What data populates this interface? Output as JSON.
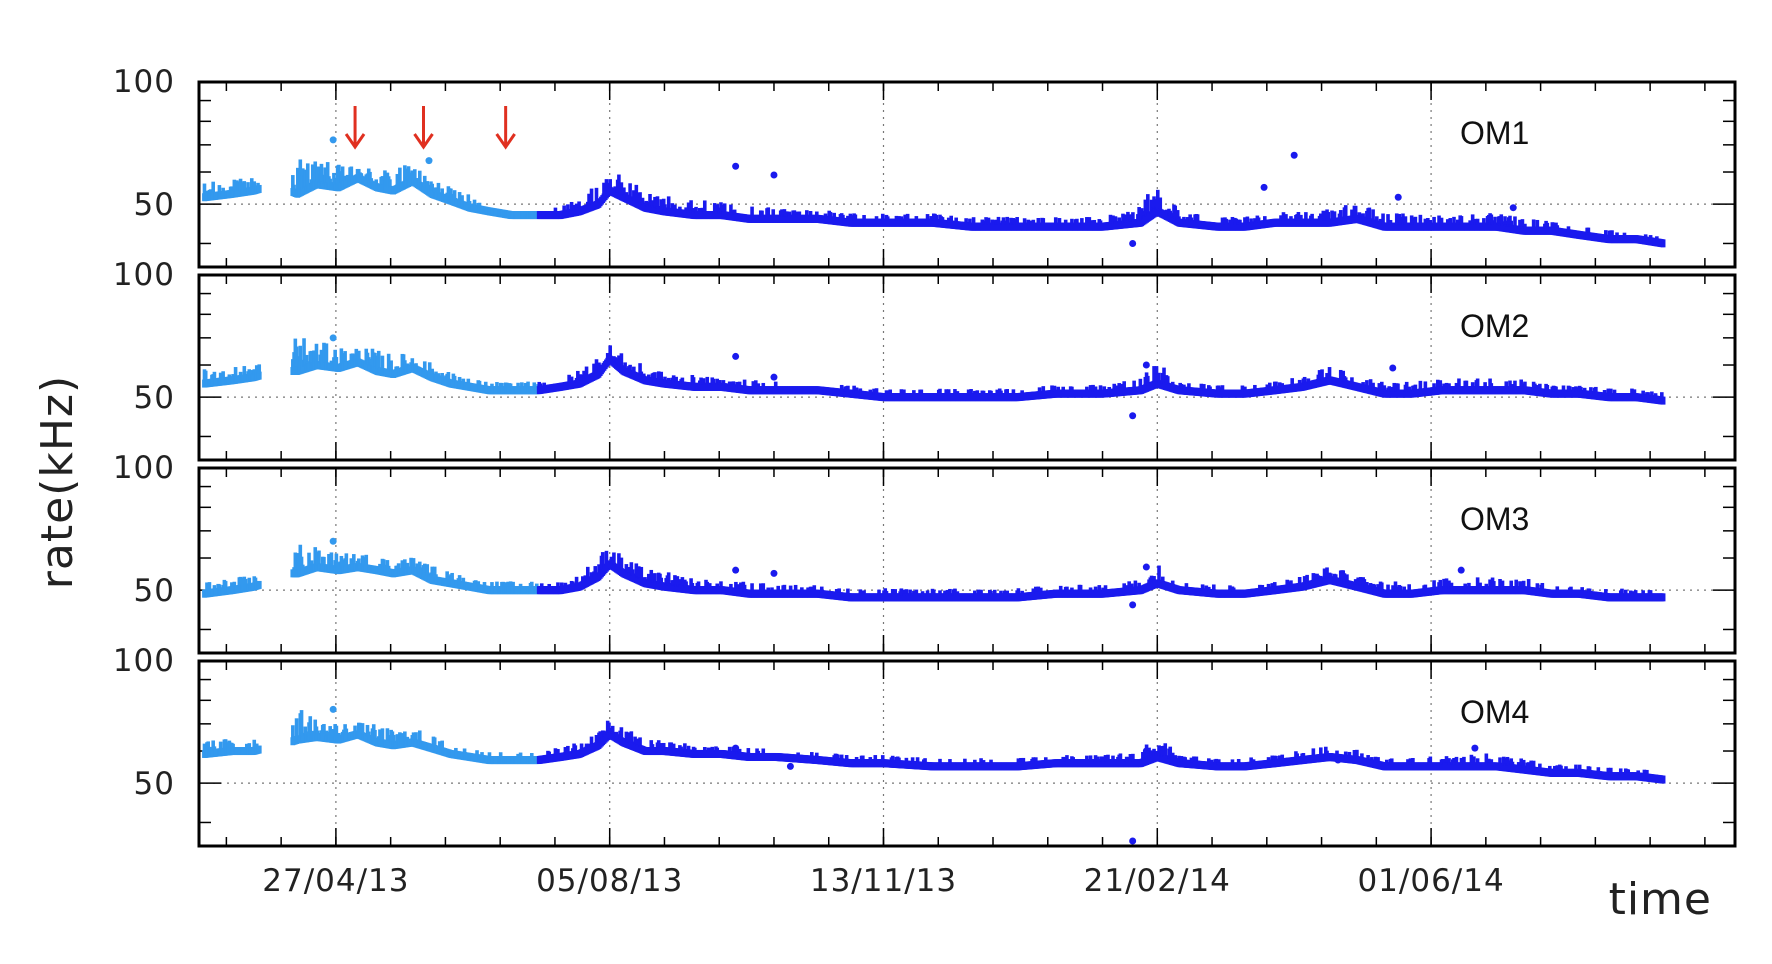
{
  "chart_data": {
    "type": "scatter",
    "ylabel": "rate(kHz)",
    "xlabel": "time",
    "x_tick_labels": [
      "27/04/13",
      "05/08/13",
      "13/11/13",
      "21/02/14",
      "01/06/14"
    ],
    "x_tick_dates": [
      "2013-04-27",
      "2013-08-05",
      "2013-11-13",
      "2014-02-21",
      "2014-06-01"
    ],
    "x_range": [
      "2013-03-08",
      "2014-09-20"
    ],
    "y_tick_labels": [
      "50",
      "100"
    ],
    "y_scale": "log",
    "ylim": [
      35,
      100
    ],
    "grid": "dotted, at x ticks and y = 50",
    "colors": {
      "early_period": "#3399ee",
      "late_period": "#1a1aee",
      "arrows": "#e03020"
    },
    "period_boundary": "2013-07-10",
    "arrows_at": [
      "2013-05-04",
      "2013-05-29",
      "2013-06-28"
    ],
    "panels": [
      {
        "name": "OM1",
        "x": [
          "2013-03-10",
          "2013-03-20",
          "2013-03-28",
          "2013-04-01",
          "2013-04-05",
          "2013-04-10",
          "2013-04-13",
          "2013-04-20",
          "2013-04-28",
          "2013-05-05",
          "2013-05-12",
          "2013-05-18",
          "2013-05-25",
          "2013-06-01",
          "2013-06-08",
          "2013-06-15",
          "2013-06-22",
          "2013-06-30",
          "2013-07-10",
          "2013-07-18",
          "2013-07-25",
          "2013-08-01",
          "2013-08-05",
          "2013-08-10",
          "2013-08-18",
          "2013-08-25",
          "2013-09-05",
          "2013-09-15",
          "2013-09-25",
          "2013-10-05",
          "2013-10-20",
          "2013-11-01",
          "2013-11-13",
          "2013-12-01",
          "2013-12-15",
          "2014-01-01",
          "2014-01-15",
          "2014-02-01",
          "2014-02-15",
          "2014-02-21",
          "2014-03-01",
          "2014-03-15",
          "2014-03-25",
          "2014-04-05",
          "2014-04-15",
          "2014-04-25",
          "2014-05-05",
          "2014-05-15",
          "2014-05-25",
          "2014-06-05",
          "2014-06-15",
          "2014-06-25",
          "2014-07-05",
          "2014-07-15",
          "2014-07-25",
          "2014-08-05",
          "2014-08-15",
          "2014-08-25"
        ],
        "y": [
          52,
          53,
          54,
          55,
          54,
          54,
          53,
          56,
          55,
          58,
          55,
          54,
          57,
          53,
          51,
          49,
          48,
          47,
          47,
          47,
          48,
          50,
          54,
          52,
          49,
          48,
          47,
          47,
          46,
          46,
          46,
          45,
          45,
          45,
          44,
          44,
          44,
          44,
          45,
          48,
          45,
          44,
          44,
          45,
          45,
          45,
          46,
          44,
          44,
          44,
          44,
          44,
          43,
          43,
          42,
          41,
          41,
          40
        ],
        "upper": [
          56,
          57,
          58,
          60,
          59,
          65,
          66,
          64,
          62,
          61,
          62,
          60,
          63,
          57,
          55,
          52,
          49,
          48,
          48,
          49,
          51,
          56,
          60,
          58,
          54,
          52,
          51,
          50,
          49,
          49,
          48,
          47,
          47,
          47,
          46,
          46,
          46,
          46,
          49,
          57,
          48,
          46,
          46,
          47,
          48,
          48,
          50,
          47,
          47,
          47,
          47,
          47,
          46,
          45,
          44,
          43,
          42,
          41
        ],
        "outliers": [
          {
            "x": "2013-04-26",
            "y": 72
          },
          {
            "x": "2013-05-31",
            "y": 64
          },
          {
            "x": "2013-09-20",
            "y": 62
          },
          {
            "x": "2013-10-04",
            "y": 59
          },
          {
            "x": "2014-02-12",
            "y": 40
          },
          {
            "x": "2014-04-01",
            "y": 55
          },
          {
            "x": "2014-04-12",
            "y": 66
          },
          {
            "x": "2014-05-20",
            "y": 52
          },
          {
            "x": "2014-07-01",
            "y": 49
          }
        ]
      },
      {
        "name": "OM2",
        "x": [
          "2013-03-10",
          "2013-03-20",
          "2013-03-28",
          "2013-04-01",
          "2013-04-05",
          "2013-04-10",
          "2013-04-13",
          "2013-04-20",
          "2013-04-28",
          "2013-05-05",
          "2013-05-12",
          "2013-05-18",
          "2013-05-25",
          "2013-06-01",
          "2013-06-08",
          "2013-06-15",
          "2013-06-22",
          "2013-06-30",
          "2013-07-10",
          "2013-07-18",
          "2013-07-25",
          "2013-08-01",
          "2013-08-05",
          "2013-08-10",
          "2013-08-18",
          "2013-08-25",
          "2013-09-05",
          "2013-09-15",
          "2013-09-25",
          "2013-10-05",
          "2013-10-20",
          "2013-11-01",
          "2013-11-13",
          "2013-12-01",
          "2013-12-15",
          "2014-01-01",
          "2014-01-15",
          "2014-02-01",
          "2014-02-15",
          "2014-02-21",
          "2014-03-01",
          "2014-03-15",
          "2014-03-25",
          "2014-04-05",
          "2014-04-15",
          "2014-04-25",
          "2014-05-05",
          "2014-05-15",
          "2014-05-25",
          "2014-06-05",
          "2014-06-15",
          "2014-06-25",
          "2014-07-05",
          "2014-07-15",
          "2014-07-25",
          "2014-08-05",
          "2014-08-15",
          "2014-08-25"
        ],
        "y": [
          54,
          55,
          56,
          57,
          56,
          58,
          58,
          60,
          59,
          61,
          58,
          57,
          59,
          56,
          54,
          53,
          52,
          52,
          52,
          53,
          54,
          57,
          62,
          58,
          55,
          54,
          53,
          53,
          52,
          52,
          52,
          51,
          50,
          50,
          50,
          50,
          51,
          51,
          52,
          54,
          52,
          51,
          51,
          52,
          53,
          55,
          53,
          51,
          51,
          52,
          52,
          52,
          52,
          51,
          51,
          50,
          50,
          49
        ],
        "upper": [
          58,
          59,
          60,
          62,
          61,
          70,
          72,
          68,
          66,
          66,
          65,
          63,
          64,
          60,
          57,
          55,
          54,
          54,
          54,
          55,
          58,
          64,
          67,
          63,
          59,
          57,
          56,
          55,
          55,
          54,
          53,
          53,
          52,
          52,
          52,
          52,
          53,
          53,
          55,
          61,
          54,
          53,
          53,
          54,
          56,
          59,
          56,
          54,
          54,
          55,
          55,
          56,
          55,
          53,
          53,
          52,
          52,
          51
        ],
        "outliers": [
          {
            "x": "2013-04-26",
            "y": 70
          },
          {
            "x": "2013-09-20",
            "y": 63
          },
          {
            "x": "2013-10-04",
            "y": 56
          },
          {
            "x": "2014-02-12",
            "y": 45
          },
          {
            "x": "2014-02-17",
            "y": 60
          },
          {
            "x": "2014-05-18",
            "y": 59
          }
        ]
      },
      {
        "name": "OM3",
        "x": [
          "2013-03-10",
          "2013-03-20",
          "2013-03-28",
          "2013-04-01",
          "2013-04-05",
          "2013-04-10",
          "2013-04-13",
          "2013-04-20",
          "2013-04-28",
          "2013-05-05",
          "2013-05-12",
          "2013-05-18",
          "2013-05-25",
          "2013-06-01",
          "2013-06-08",
          "2013-06-15",
          "2013-06-22",
          "2013-06-30",
          "2013-07-10",
          "2013-07-18",
          "2013-07-25",
          "2013-08-01",
          "2013-08-05",
          "2013-08-10",
          "2013-08-18",
          "2013-08-25",
          "2013-09-05",
          "2013-09-15",
          "2013-09-25",
          "2013-10-05",
          "2013-10-20",
          "2013-11-01",
          "2013-11-13",
          "2013-12-01",
          "2013-12-15",
          "2014-01-01",
          "2014-01-15",
          "2014-02-01",
          "2014-02-15",
          "2014-02-21",
          "2014-03-01",
          "2014-03-15",
          "2014-03-25",
          "2014-04-05",
          "2014-04-15",
          "2014-04-25",
          "2014-05-05",
          "2014-05-15",
          "2014-05-25",
          "2014-06-05",
          "2014-06-15",
          "2014-06-25",
          "2014-07-05",
          "2014-07-15",
          "2014-07-25",
          "2014-08-05",
          "2014-08-15",
          "2014-08-25"
        ],
        "y": [
          49,
          50,
          51,
          52,
          51,
          55,
          55,
          57,
          56,
          57,
          56,
          55,
          56,
          53,
          52,
          51,
          50,
          50,
          50,
          50,
          51,
          54,
          58,
          55,
          52,
          51,
          50,
          50,
          49,
          49,
          49,
          48,
          48,
          48,
          48,
          48,
          49,
          49,
          50,
          52,
          50,
          49,
          49,
          50,
          51,
          53,
          51,
          49,
          49,
          50,
          50,
          50,
          50,
          49,
          49,
          48,
          48,
          48
        ],
        "upper": [
          52,
          53,
          54,
          57,
          56,
          64,
          66,
          63,
          61,
          61,
          61,
          59,
          60,
          57,
          55,
          53,
          52,
          52,
          52,
          52,
          54,
          61,
          64,
          60,
          56,
          55,
          53,
          52,
          52,
          51,
          51,
          50,
          50,
          50,
          50,
          50,
          51,
          51,
          53,
          58,
          52,
          51,
          51,
          52,
          54,
          57,
          54,
          52,
          52,
          53,
          53,
          54,
          53,
          51,
          51,
          50,
          50,
          49
        ],
        "outliers": [
          {
            "x": "2013-04-26",
            "y": 66
          },
          {
            "x": "2013-09-20",
            "y": 56
          },
          {
            "x": "2013-10-04",
            "y": 55
          },
          {
            "x": "2014-02-12",
            "y": 46
          },
          {
            "x": "2014-02-17",
            "y": 57
          },
          {
            "x": "2014-06-12",
            "y": 56
          }
        ]
      },
      {
        "name": "OM4",
        "x": [
          "2013-03-10",
          "2013-03-20",
          "2013-03-28",
          "2013-04-01",
          "2013-04-05",
          "2013-04-10",
          "2013-04-13",
          "2013-04-20",
          "2013-04-28",
          "2013-05-05",
          "2013-05-12",
          "2013-05-18",
          "2013-05-25",
          "2013-06-01",
          "2013-06-08",
          "2013-06-15",
          "2013-06-22",
          "2013-06-30",
          "2013-07-10",
          "2013-07-18",
          "2013-07-25",
          "2013-08-01",
          "2013-08-05",
          "2013-08-10",
          "2013-08-18",
          "2013-08-25",
          "2013-09-05",
          "2013-09-15",
          "2013-09-25",
          "2013-10-05",
          "2013-10-20",
          "2013-11-01",
          "2013-11-13",
          "2013-12-01",
          "2013-12-15",
          "2014-01-01",
          "2014-01-15",
          "2014-02-01",
          "2014-02-15",
          "2014-02-21",
          "2014-03-01",
          "2014-03-15",
          "2014-03-25",
          "2014-04-05",
          "2014-04-15",
          "2014-04-25",
          "2014-05-05",
          "2014-05-15",
          "2014-05-25",
          "2014-06-05",
          "2014-06-15",
          "2014-06-25",
          "2014-07-05",
          "2014-07-15",
          "2014-07-25",
          "2014-08-05",
          "2014-08-15",
          "2014-08-25"
        ],
        "y": [
          59,
          60,
          60,
          61,
          60,
          63,
          64,
          65,
          64,
          66,
          63,
          62,
          63,
          61,
          59,
          58,
          57,
          57,
          57,
          58,
          59,
          62,
          66,
          63,
          60,
          60,
          59,
          59,
          58,
          58,
          57,
          56,
          56,
          55,
          55,
          55,
          56,
          56,
          56,
          58,
          56,
          55,
          55,
          56,
          57,
          58,
          57,
          55,
          55,
          55,
          55,
          55,
          54,
          53,
          53,
          52,
          52,
          51
        ],
        "upper": [
          63,
          64,
          65,
          67,
          66,
          73,
          76,
          72,
          70,
          70,
          69,
          67,
          68,
          65,
          62,
          60,
          59,
          59,
          59,
          61,
          63,
          68,
          71,
          68,
          64,
          63,
          62,
          61,
          61,
          60,
          59,
          58,
          58,
          57,
          57,
          57,
          58,
          58,
          60,
          65,
          58,
          57,
          57,
          58,
          60,
          61,
          60,
          57,
          57,
          58,
          58,
          59,
          57,
          55,
          55,
          54,
          54,
          53
        ],
        "outliers": [
          {
            "x": "2013-04-26",
            "y": 76
          },
          {
            "x": "2013-09-20",
            "y": 61
          },
          {
            "x": "2013-10-10",
            "y": 55
          },
          {
            "x": "2014-02-12",
            "y": 36
          },
          {
            "x": "2014-02-17",
            "y": 60
          },
          {
            "x": "2014-04-28",
            "y": 57
          },
          {
            "x": "2014-06-17",
            "y": 61
          }
        ]
      }
    ]
  }
}
